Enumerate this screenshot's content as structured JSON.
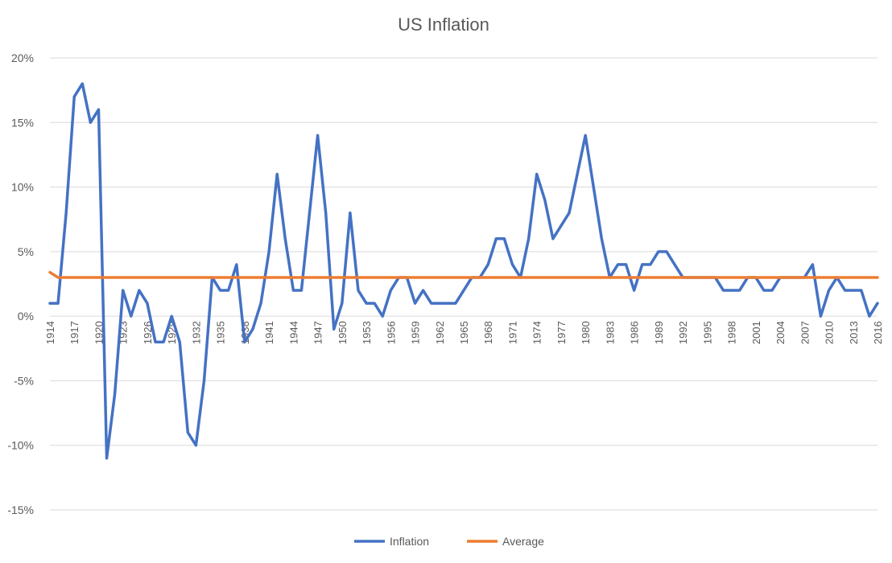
{
  "chart_data": {
    "type": "line",
    "title": "US Inflation",
    "xlabel": "",
    "ylabel": "",
    "ylim": [
      -0.15,
      0.2
    ],
    "y_ticks": [
      {
        "value": 0.2,
        "label": "20%"
      },
      {
        "value": 0.15,
        "label": "15%"
      },
      {
        "value": 0.1,
        "label": "10%"
      },
      {
        "value": 0.05,
        "label": "5%"
      },
      {
        "value": 0.0,
        "label": "0%"
      },
      {
        "value": -0.05,
        "label": "-5%"
      },
      {
        "value": -0.1,
        "label": "-10%"
      },
      {
        "value": -0.15,
        "label": "-15%"
      }
    ],
    "grid": true,
    "legend": "bottom",
    "x_tick_labels": [
      "1914",
      "1917",
      "1920",
      "1923",
      "1926",
      "1929",
      "1932",
      "1935",
      "1938",
      "1941",
      "1944",
      "1947",
      "1950",
      "1953",
      "1956",
      "1959",
      "1962",
      "1965",
      "1968",
      "1971",
      "1974",
      "1977",
      "1980",
      "1983",
      "1986",
      "1989",
      "1992",
      "1995",
      "1998",
      "2001",
      "2004",
      "2007",
      "2010",
      "2013",
      "2016"
    ],
    "x": [
      1914,
      1915,
      1916,
      1917,
      1918,
      1919,
      1920,
      1921,
      1922,
      1923,
      1924,
      1925,
      1926,
      1927,
      1928,
      1929,
      1930,
      1931,
      1932,
      1933,
      1934,
      1935,
      1936,
      1937,
      1938,
      1939,
      1940,
      1941,
      1942,
      1943,
      1944,
      1945,
      1946,
      1947,
      1948,
      1949,
      1950,
      1951,
      1952,
      1953,
      1954,
      1955,
      1956,
      1957,
      1958,
      1959,
      1960,
      1961,
      1962,
      1963,
      1964,
      1965,
      1966,
      1967,
      1968,
      1969,
      1970,
      1971,
      1972,
      1973,
      1974,
      1975,
      1976,
      1977,
      1978,
      1979,
      1980,
      1981,
      1982,
      1983,
      1984,
      1985,
      1986,
      1987,
      1988,
      1989,
      1990,
      1991,
      1992,
      1993,
      1994,
      1995,
      1996,
      1997,
      1998,
      1999,
      2000,
      2001,
      2002,
      2003,
      2004,
      2005,
      2006,
      2007,
      2008,
      2009,
      2010,
      2011,
      2012,
      2013,
      2014,
      2015,
      2016
    ],
    "series": [
      {
        "name": "Inflation",
        "color": "#4472c4",
        "values": [
          0.01,
          0.01,
          0.08,
          0.17,
          0.18,
          0.15,
          0.16,
          -0.11,
          -0.06,
          0.02,
          0.0,
          0.02,
          0.01,
          -0.02,
          -0.02,
          0.0,
          -0.02,
          -0.09,
          -0.1,
          -0.05,
          0.03,
          0.02,
          0.02,
          0.04,
          -0.02,
          -0.01,
          0.01,
          0.05,
          0.11,
          0.06,
          0.02,
          0.02,
          0.08,
          0.14,
          0.08,
          -0.01,
          0.01,
          0.08,
          0.02,
          0.01,
          0.01,
          0.0,
          0.02,
          0.03,
          0.03,
          0.01,
          0.02,
          0.01,
          0.01,
          0.01,
          0.01,
          0.02,
          0.03,
          0.03,
          0.04,
          0.06,
          0.06,
          0.04,
          0.03,
          0.06,
          0.11,
          0.09,
          0.06,
          0.07,
          0.08,
          0.11,
          0.14,
          0.1,
          0.06,
          0.03,
          0.04,
          0.04,
          0.02,
          0.04,
          0.04,
          0.05,
          0.05,
          0.04,
          0.03,
          0.03,
          0.03,
          0.03,
          0.03,
          0.02,
          0.02,
          0.02,
          0.03,
          0.03,
          0.02,
          0.02,
          0.03,
          0.03,
          0.03,
          0.03,
          0.04,
          0.0,
          0.02,
          0.03,
          0.02,
          0.02,
          0.02,
          0.0,
          0.01
        ]
      },
      {
        "name": "Average",
        "color": "#ed7d31",
        "values": [
          0.034,
          0.03,
          0.03,
          0.03,
          0.03,
          0.03,
          0.03,
          0.03,
          0.03,
          0.03,
          0.03,
          0.03,
          0.03,
          0.03,
          0.03,
          0.03,
          0.03,
          0.03,
          0.03,
          0.03,
          0.03,
          0.03,
          0.03,
          0.03,
          0.03,
          0.03,
          0.03,
          0.03,
          0.03,
          0.03,
          0.03,
          0.03,
          0.03,
          0.03,
          0.03,
          0.03,
          0.03,
          0.03,
          0.03,
          0.03,
          0.03,
          0.03,
          0.03,
          0.03,
          0.03,
          0.03,
          0.03,
          0.03,
          0.03,
          0.03,
          0.03,
          0.03,
          0.03,
          0.03,
          0.03,
          0.03,
          0.03,
          0.03,
          0.03,
          0.03,
          0.03,
          0.03,
          0.03,
          0.03,
          0.03,
          0.03,
          0.03,
          0.03,
          0.03,
          0.03,
          0.03,
          0.03,
          0.03,
          0.03,
          0.03,
          0.03,
          0.03,
          0.03,
          0.03,
          0.03,
          0.03,
          0.03,
          0.03,
          0.03,
          0.03,
          0.03,
          0.03,
          0.03,
          0.03,
          0.03,
          0.03,
          0.03,
          0.03,
          0.03,
          0.03,
          0.03,
          0.03,
          0.03,
          0.03,
          0.03,
          0.03,
          0.03,
          0.03
        ]
      }
    ]
  }
}
